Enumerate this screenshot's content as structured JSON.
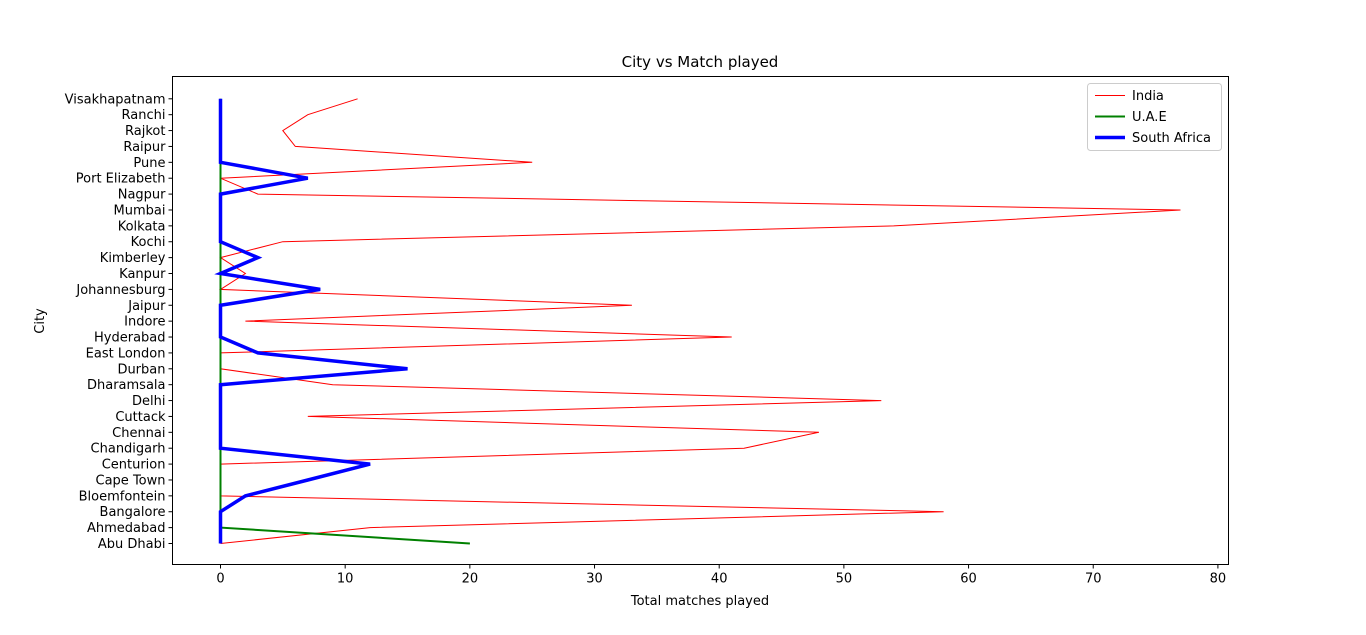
{
  "chart_data": {
    "type": "line",
    "title": "City vs Match played",
    "xlabel": "Total matches played",
    "ylabel": "City",
    "xlim": [
      -3.85,
      80.85
    ],
    "xticks": [
      0,
      10,
      20,
      30,
      40,
      50,
      60,
      70,
      80
    ],
    "grid": false,
    "legend_position": "top-right",
    "categories": [
      "Abu Dhabi",
      "Ahmedabad",
      "Bangalore",
      "Bloemfontein",
      "Cape Town",
      "Centurion",
      "Chandigarh",
      "Chennai",
      "Cuttack",
      "Delhi",
      "Dharamsala",
      "Durban",
      "East London",
      "Hyderabad",
      "Indore",
      "Jaipur",
      "Johannesburg",
      "Kanpur",
      "Kimberley",
      "Kochi",
      "Kolkata",
      "Mumbai",
      "Nagpur",
      "Port Elizabeth",
      "Pune",
      "Raipur",
      "Rajkot",
      "Ranchi",
      "Visakhapatnam"
    ],
    "series": [
      {
        "name": "India",
        "color": "#ff0000",
        "values": [
          0,
          12,
          58,
          0,
          0,
          0,
          42,
          48,
          7,
          53,
          9,
          0,
          0,
          41,
          2,
          33,
          0,
          2,
          0,
          5,
          54,
          77,
          3,
          0,
          25,
          6,
          5,
          7,
          11
        ]
      },
      {
        "name": "U.A.E",
        "color": "#008000",
        "values": [
          20,
          0,
          0,
          0,
          0,
          0,
          0,
          0,
          0,
          0,
          0,
          0,
          0,
          0,
          0,
          0,
          0,
          0,
          0,
          0,
          0,
          0,
          0,
          0,
          0,
          0,
          0,
          0,
          0
        ]
      },
      {
        "name": "South Africa",
        "color": "#0000ff",
        "values": [
          0,
          0,
          0,
          2,
          7,
          12,
          0,
          0,
          0,
          0,
          0,
          15,
          3,
          0,
          0,
          0,
          8,
          0,
          3,
          0,
          0,
          0,
          0,
          7,
          0,
          0,
          0,
          0,
          0
        ]
      }
    ]
  }
}
